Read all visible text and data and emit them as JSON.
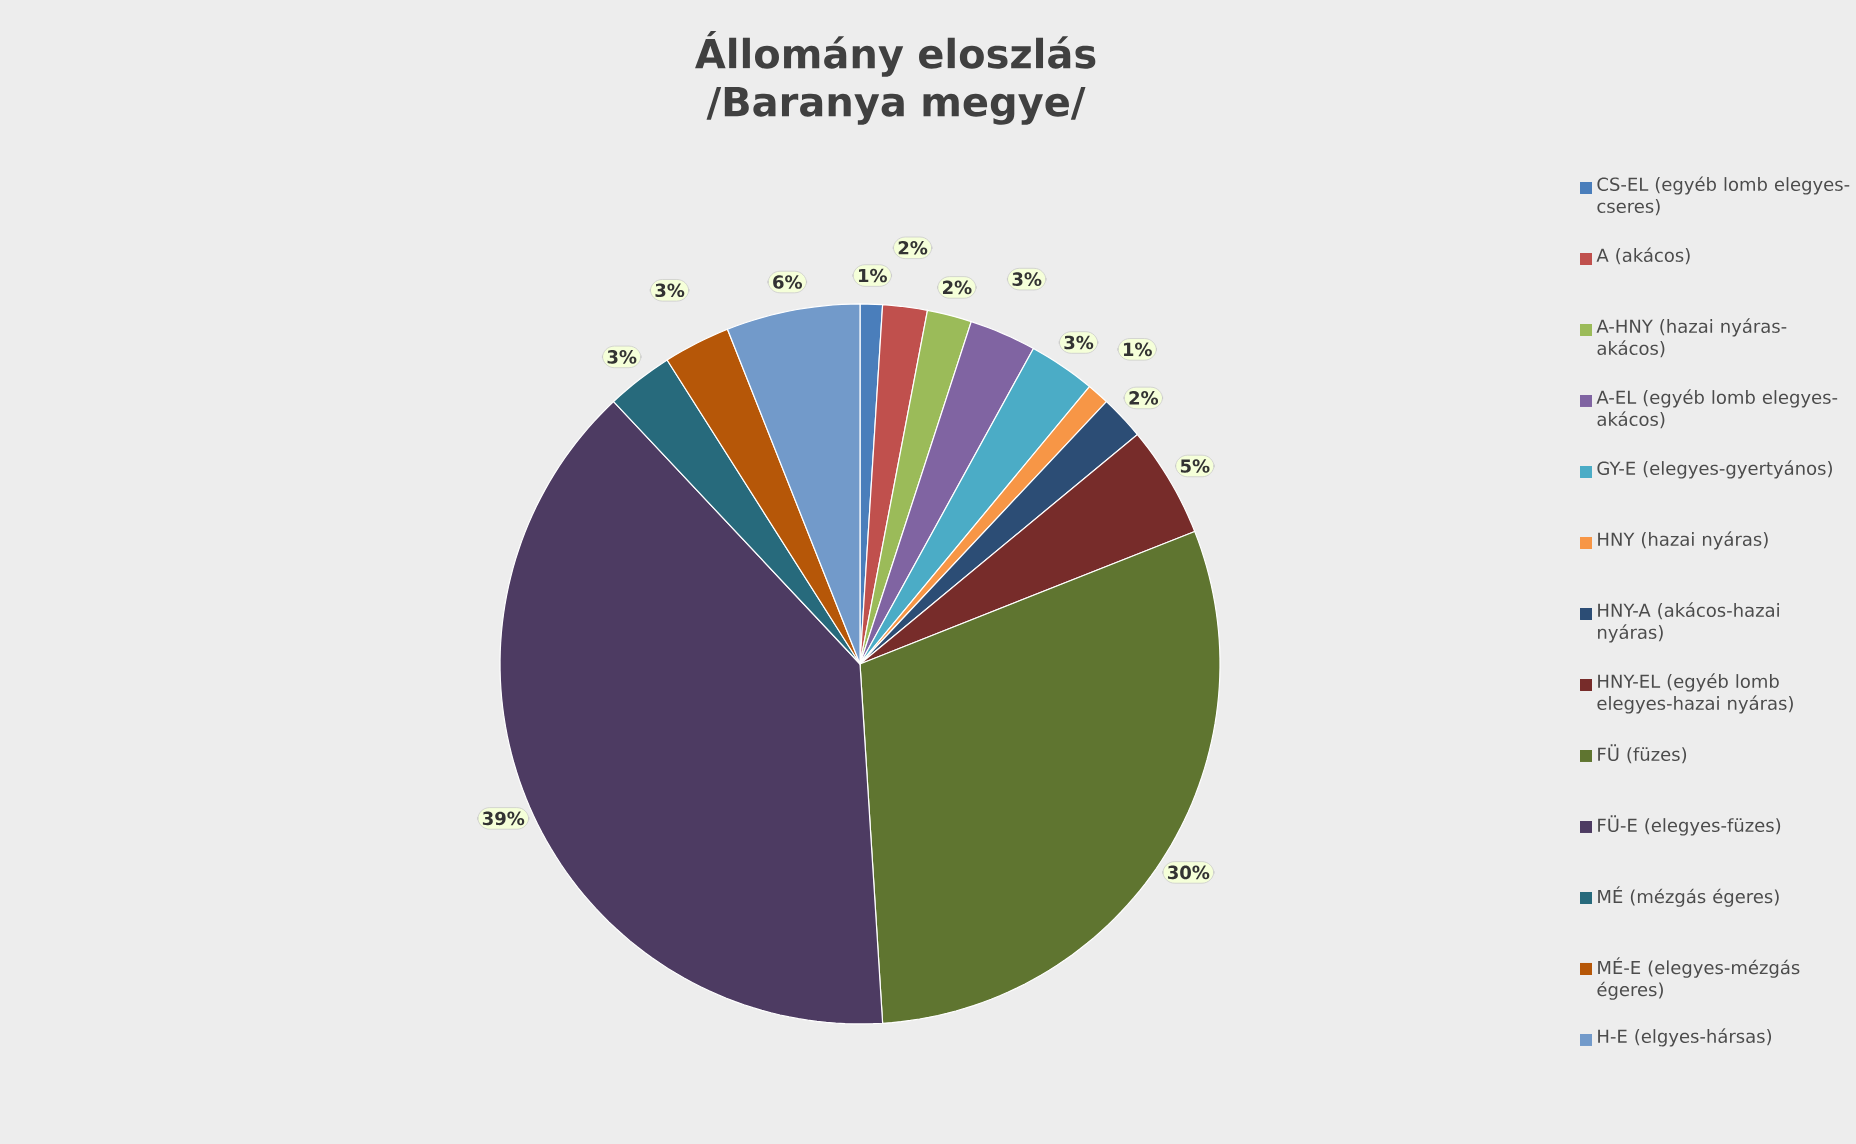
{
  "chart_data": {
    "type": "pie",
    "title": "Állomány eloszlás /Baranya megye/",
    "categories": [
      "CS-EL (egyéb lomb elegyes-cseres)",
      "A (akácos)",
      "A-HNY (hazai nyáras-akácos)",
      "A-EL (egyéb lomb elegyes-akácos)",
      "GY-E (elegyes-gyertyános)",
      "HNY (hazai nyáras)",
      "HNY-A (akácos-hazai nyáras)",
      "HNY-EL (egyéb lomb elegyes-hazai nyáras)",
      "FÜ (füzes)",
      "FÜ-E (elegyes-füzes)",
      "MÉ (mézgás égeres)",
      "MÉ-E (elegyes-mézgás égeres)",
      "H-E (elgyes-hársas)"
    ],
    "values": [
      1,
      2,
      2,
      3,
      3,
      1,
      2,
      5,
      30,
      39,
      3,
      3,
      6
    ],
    "value_labels": [
      "1%",
      "2%",
      "2%",
      "3%",
      "3%",
      "1%",
      "2%",
      "5%",
      "30%",
      "39%",
      "3%",
      "3%",
      "6%"
    ],
    "colors": [
      "#4a7ebb",
      "#c0504d",
      "#9bbb59",
      "#8064a2",
      "#4bacc6",
      "#f79646",
      "#2c4d75",
      "#772c2a",
      "#5f7530",
      "#4d3b62",
      "#276a7c",
      "#b65708",
      "#729aca"
    ],
    "legend": "right"
  }
}
